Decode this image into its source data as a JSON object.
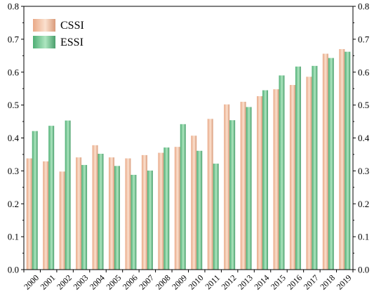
{
  "chart_data": {
    "type": "bar",
    "categories": [
      "2000",
      "2001",
      "2002",
      "2003",
      "2004",
      "2005",
      "2006",
      "2007",
      "2008",
      "2009",
      "2010",
      "2011",
      "2012",
      "2013",
      "2014",
      "2015",
      "2016",
      "2017",
      "2018",
      "2019"
    ],
    "series": [
      {
        "name": "CSSI",
        "color": "#f2c1a4",
        "values": [
          0.338,
          0.329,
          0.298,
          0.341,
          0.378,
          0.341,
          0.338,
          0.348,
          0.355,
          0.373,
          0.407,
          0.458,
          0.502,
          0.51,
          0.527,
          0.548,
          0.561,
          0.586,
          0.656,
          0.67
        ]
      },
      {
        "name": "ESSI",
        "color": "#7fcf9c",
        "values": [
          0.421,
          0.437,
          0.453,
          0.318,
          0.352,
          0.315,
          0.288,
          0.301,
          0.371,
          0.442,
          0.361,
          0.322,
          0.454,
          0.494,
          0.545,
          0.59,
          0.617,
          0.619,
          0.643,
          0.662
        ]
      }
    ],
    "ylim": [
      0,
      0.8
    ],
    "yticks": [
      "0.0",
      "0.1",
      "0.2",
      "0.3",
      "0.4",
      "0.5",
      "0.6",
      "0.7",
      "0.8"
    ],
    "ylabel": "",
    "xlabel": "",
    "grid": false,
    "legend_position": "top-left",
    "right_axis_mirrored": true
  }
}
